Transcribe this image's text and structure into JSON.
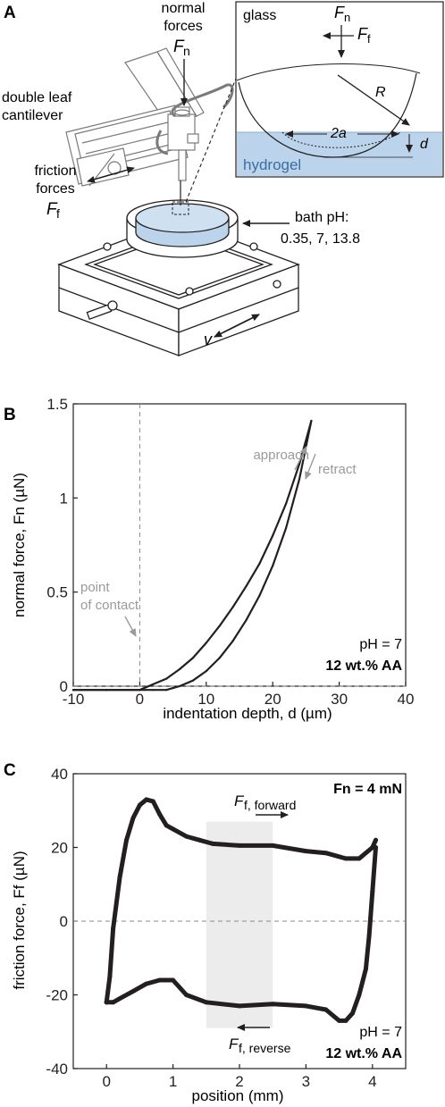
{
  "panels": {
    "a": {
      "letter": "A",
      "normal_forces_line1": "normal",
      "normal_forces_line2": "forces",
      "normal_forces_symbol": "F",
      "normal_forces_sub": "n",
      "cantilever_line1": "double leaf",
      "cantilever_line2": "cantilever",
      "friction_forces_line1": "friction",
      "friction_forces_line2": "forces",
      "friction_forces_symbol": "F",
      "friction_forces_sub": "f",
      "bath_line1": "bath pH:",
      "bath_line2": "0.35, 7, 13.8",
      "velocity_symbol": "v",
      "inset": {
        "glass": "glass",
        "fn_symbol": "F",
        "fn_sub": "n",
        "ff_symbol": "F",
        "ff_sub": "f",
        "radius": "R",
        "contact": "2a",
        "depth": "d",
        "hydrogel": "hydrogel"
      }
    },
    "b": {
      "letter": "B"
    },
    "c": {
      "letter": "C"
    }
  },
  "chart_data": [
    {
      "type": "line",
      "panel": "B",
      "xlabel": "indentation depth, d (µm)",
      "ylabel": "normal force, Fn (µN)",
      "xlim": [
        -10,
        40
      ],
      "ylim": [
        0,
        1.5
      ],
      "xticks": [
        "-10",
        "0",
        "10",
        "20",
        "30",
        "40"
      ],
      "yticks": [
        "0",
        "0.5",
        "1",
        "1.5"
      ],
      "series": [
        {
          "name": "approach",
          "x": [
            -10,
            -5,
            0,
            2,
            4,
            6,
            8,
            10,
            12,
            14,
            16,
            18,
            20,
            22,
            24,
            25.8
          ],
          "y": [
            -0.02,
            -0.02,
            -0.02,
            0.01,
            0.04,
            0.09,
            0.15,
            0.23,
            0.32,
            0.42,
            0.53,
            0.65,
            0.8,
            0.97,
            1.18,
            1.41
          ]
        },
        {
          "name": "retract",
          "x": [
            25.8,
            24,
            22,
            20,
            18,
            16,
            14,
            12,
            10,
            8,
            6,
            5,
            4,
            2,
            0,
            -5,
            -10
          ],
          "y": [
            1.41,
            1.1,
            0.84,
            0.64,
            0.48,
            0.35,
            0.24,
            0.15,
            0.08,
            0.03,
            0.0,
            -0.01,
            -0.02,
            -0.02,
            -0.02,
            -0.02,
            -0.02
          ]
        }
      ],
      "annotations": {
        "approach": "approach",
        "retract": "retract",
        "contact_line1": "point",
        "contact_line2": "of contact",
        "ph": "pH = 7",
        "composition": "12 wt.% AA"
      },
      "reference_lines": {
        "x": 0,
        "y": 0
      }
    },
    {
      "type": "line",
      "panel": "C",
      "xlabel": "position (mm)",
      "ylabel": "friction force, Ff (µN)",
      "xlim": [
        -0.5,
        4.5
      ],
      "ylim": [
        -40,
        40
      ],
      "xticks": [
        "0",
        "1",
        "2",
        "3",
        "4"
      ],
      "yticks": [
        "-40",
        "-20",
        "0",
        "20",
        "40"
      ],
      "shaded_region": [
        1.5,
        2.5
      ],
      "series": [
        {
          "name": "Ff, forward",
          "x": [
            0.0,
            0.05,
            0.1,
            0.2,
            0.3,
            0.4,
            0.5,
            0.6,
            0.7,
            0.8,
            0.9,
            1.0,
            1.2,
            1.4,
            1.6,
            2.0,
            2.5,
            3.0,
            3.3,
            3.6,
            3.8,
            4.0,
            4.05
          ],
          "y": [
            -22,
            -15,
            -2,
            12,
            22,
            28,
            31.5,
            33,
            32.5,
            29,
            26,
            25,
            23,
            22,
            21,
            20.5,
            20.5,
            19,
            18.5,
            17,
            17,
            20,
            22
          ]
        },
        {
          "name": "Ff, reverse",
          "x": [
            4.05,
            4.0,
            3.95,
            3.9,
            3.8,
            3.7,
            3.6,
            3.5,
            3.3,
            3.0,
            2.5,
            2.0,
            1.5,
            1.2,
            1.0,
            0.8,
            0.6,
            0.4,
            0.2,
            0.1,
            0.0
          ],
          "y": [
            20,
            8,
            -4,
            -13,
            -20,
            -25,
            -27,
            -27,
            -24,
            -23,
            -22.5,
            -23,
            -22,
            -20,
            -16,
            -16,
            -17,
            -19,
            -21,
            -22,
            -22
          ]
        }
      ],
      "annotations": {
        "forward_symbol": "F",
        "forward_sub": "f, forward",
        "reverse_symbol": "F",
        "reverse_sub": "f, reverse",
        "normal_load": "Fn = 4 mN",
        "ph": "pH = 7",
        "composition": "12 wt.% AA"
      },
      "reference_lines": {
        "y": 0
      }
    }
  ]
}
